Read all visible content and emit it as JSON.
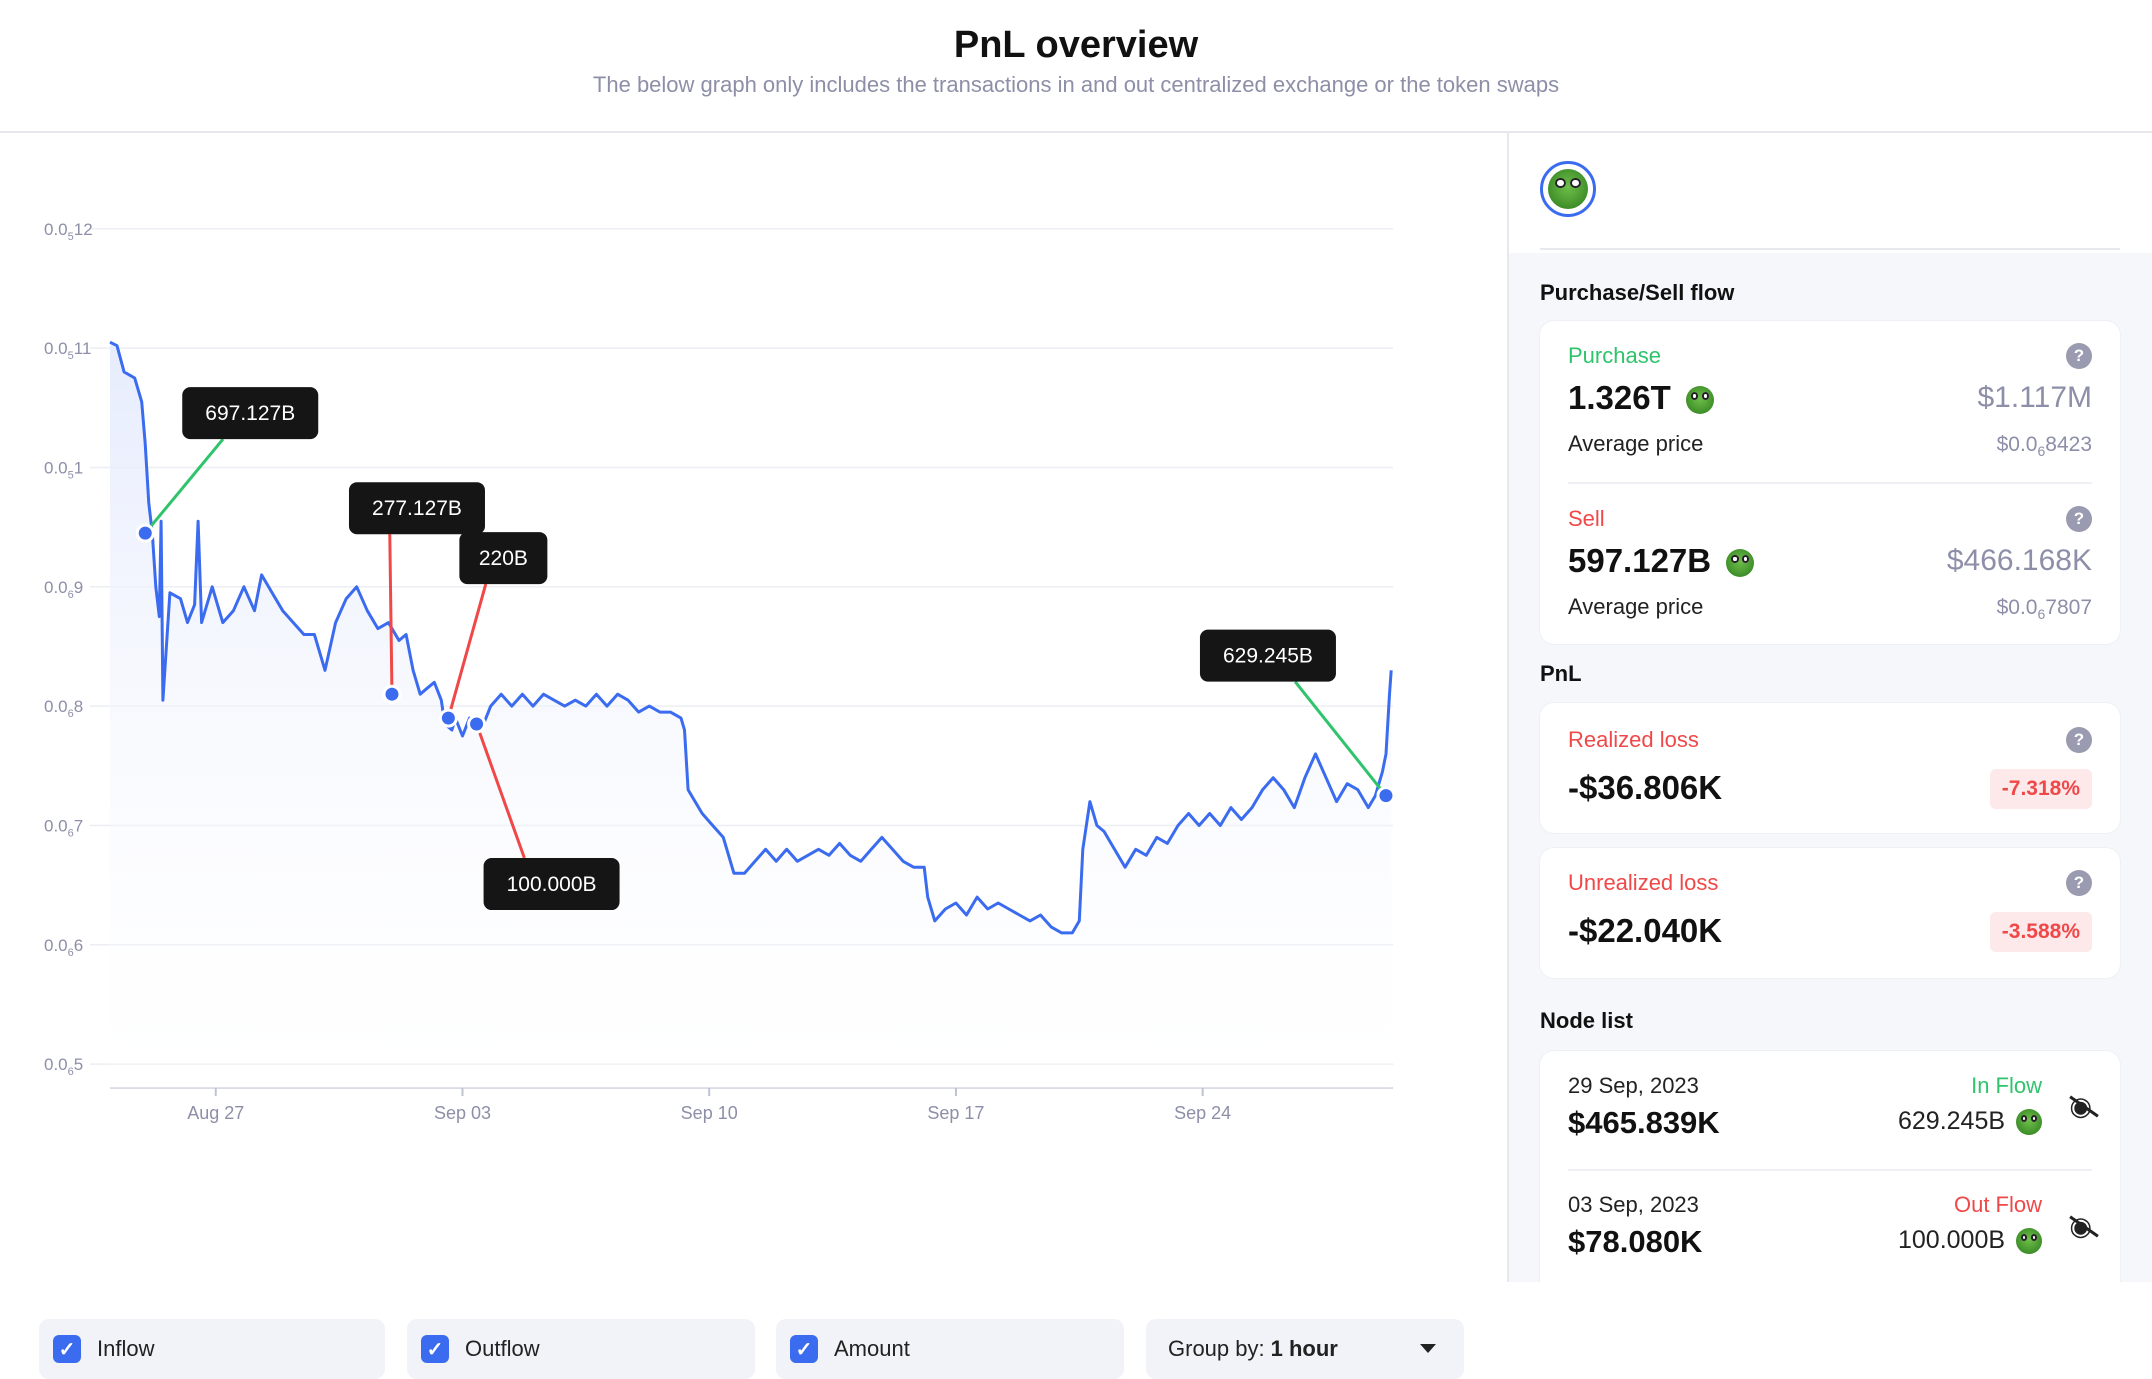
{
  "header": {
    "title": "PnL overview",
    "subtitle": "The below graph only includes the transactions in and out centralized exchange or the token swaps"
  },
  "chart_data": {
    "type": "line",
    "y_ticks": [
      {
        "value": 0.12,
        "base": "0.0",
        "sub": "5",
        "rest": "12"
      },
      {
        "value": 0.11,
        "base": "0.0",
        "sub": "5",
        "rest": "11"
      },
      {
        "value": 0.1,
        "base": "0.0",
        "sub": "5",
        "rest": "1"
      },
      {
        "value": 0.09,
        "base": "0.0",
        "sub": "6",
        "rest": "9"
      },
      {
        "value": 0.08,
        "base": "0.0",
        "sub": "6",
        "rest": "8"
      },
      {
        "value": 0.07,
        "base": "0.0",
        "sub": "6",
        "rest": "7"
      },
      {
        "value": 0.06,
        "base": "0.0",
        "sub": "6",
        "rest": "6"
      },
      {
        "value": 0.05,
        "base": "0.0",
        "sub": "6",
        "rest": "5"
      }
    ],
    "x_ticks": [
      {
        "day": 4.8,
        "label": "Aug 27"
      },
      {
        "day": 11.8,
        "label": "Sep 03"
      },
      {
        "day": 18.8,
        "label": "Sep 10"
      },
      {
        "day": 25.8,
        "label": "Sep 17"
      },
      {
        "day": 32.8,
        "label": "Sep 24"
      }
    ],
    "x_range": [
      1.8,
      38.2
    ],
    "y_range": [
      0.048,
      0.123
    ],
    "series": [
      {
        "points": [
          [
            1.8,
            0.1105
          ],
          [
            2.0,
            0.1102
          ],
          [
            2.2,
            0.108
          ],
          [
            2.5,
            0.1075
          ],
          [
            2.7,
            0.1055
          ],
          [
            2.8,
            0.102
          ],
          [
            2.9,
            0.097
          ],
          [
            3.0,
            0.0945
          ],
          [
            3.1,
            0.09
          ],
          [
            3.2,
            0.0875
          ],
          [
            3.25,
            0.0955
          ],
          [
            3.3,
            0.0805
          ],
          [
            3.5,
            0.0895
          ],
          [
            3.8,
            0.089
          ],
          [
            4.0,
            0.087
          ],
          [
            4.2,
            0.0885
          ],
          [
            4.3,
            0.0955
          ],
          [
            4.4,
            0.087
          ],
          [
            4.7,
            0.09
          ],
          [
            5.0,
            0.087
          ],
          [
            5.3,
            0.088
          ],
          [
            5.6,
            0.09
          ],
          [
            5.9,
            0.088
          ],
          [
            6.1,
            0.091
          ],
          [
            6.4,
            0.0895
          ],
          [
            6.7,
            0.088
          ],
          [
            7.0,
            0.087
          ],
          [
            7.3,
            0.086
          ],
          [
            7.6,
            0.086
          ],
          [
            7.9,
            0.083
          ],
          [
            8.2,
            0.087
          ],
          [
            8.5,
            0.089
          ],
          [
            8.8,
            0.09
          ],
          [
            9.1,
            0.088
          ],
          [
            9.4,
            0.0865
          ],
          [
            9.7,
            0.087
          ],
          [
            10.0,
            0.0855
          ],
          [
            10.2,
            0.086
          ],
          [
            10.4,
            0.083
          ],
          [
            10.6,
            0.081
          ],
          [
            10.8,
            0.0815
          ],
          [
            11.0,
            0.082
          ],
          [
            11.2,
            0.0805
          ],
          [
            11.3,
            0.0785
          ],
          [
            11.5,
            0.078
          ],
          [
            11.6,
            0.079
          ],
          [
            11.8,
            0.0775
          ],
          [
            12.0,
            0.079
          ],
          [
            12.2,
            0.078
          ],
          [
            12.4,
            0.0785
          ],
          [
            12.6,
            0.08
          ],
          [
            12.9,
            0.081
          ],
          [
            13.2,
            0.08
          ],
          [
            13.5,
            0.081
          ],
          [
            13.8,
            0.08
          ],
          [
            14.1,
            0.081
          ],
          [
            14.4,
            0.0805
          ],
          [
            14.7,
            0.08
          ],
          [
            15.0,
            0.0805
          ],
          [
            15.3,
            0.08
          ],
          [
            15.6,
            0.081
          ],
          [
            15.9,
            0.08
          ],
          [
            16.2,
            0.081
          ],
          [
            16.5,
            0.0805
          ],
          [
            16.8,
            0.0795
          ],
          [
            17.1,
            0.08
          ],
          [
            17.4,
            0.0795
          ],
          [
            17.7,
            0.0795
          ],
          [
            18.0,
            0.079
          ],
          [
            18.1,
            0.078
          ],
          [
            18.2,
            0.073
          ],
          [
            18.4,
            0.072
          ],
          [
            18.6,
            0.071
          ],
          [
            18.9,
            0.07
          ],
          [
            19.2,
            0.069
          ],
          [
            19.5,
            0.066
          ],
          [
            19.8,
            0.066
          ],
          [
            20.1,
            0.067
          ],
          [
            20.4,
            0.068
          ],
          [
            20.7,
            0.067
          ],
          [
            21.0,
            0.068
          ],
          [
            21.3,
            0.067
          ],
          [
            21.6,
            0.0675
          ],
          [
            21.9,
            0.068
          ],
          [
            22.2,
            0.0675
          ],
          [
            22.5,
            0.0685
          ],
          [
            22.8,
            0.0675
          ],
          [
            23.1,
            0.067
          ],
          [
            23.4,
            0.068
          ],
          [
            23.7,
            0.069
          ],
          [
            24.0,
            0.068
          ],
          [
            24.3,
            0.067
          ],
          [
            24.6,
            0.0665
          ],
          [
            24.9,
            0.0665
          ],
          [
            25.0,
            0.064
          ],
          [
            25.2,
            0.062
          ],
          [
            25.5,
            0.063
          ],
          [
            25.8,
            0.0635
          ],
          [
            26.1,
            0.0625
          ],
          [
            26.4,
            0.064
          ],
          [
            26.7,
            0.063
          ],
          [
            27.0,
            0.0635
          ],
          [
            27.3,
            0.063
          ],
          [
            27.6,
            0.0625
          ],
          [
            27.9,
            0.062
          ],
          [
            28.2,
            0.0625
          ],
          [
            28.5,
            0.0615
          ],
          [
            28.8,
            0.061
          ],
          [
            29.1,
            0.061
          ],
          [
            29.3,
            0.062
          ],
          [
            29.4,
            0.068
          ],
          [
            29.6,
            0.072
          ],
          [
            29.8,
            0.07
          ],
          [
            30.0,
            0.0695
          ],
          [
            30.3,
            0.068
          ],
          [
            30.6,
            0.0665
          ],
          [
            30.9,
            0.068
          ],
          [
            31.2,
            0.0675
          ],
          [
            31.5,
            0.069
          ],
          [
            31.8,
            0.0685
          ],
          [
            32.1,
            0.07
          ],
          [
            32.4,
            0.071
          ],
          [
            32.7,
            0.07
          ],
          [
            33.0,
            0.071
          ],
          [
            33.3,
            0.07
          ],
          [
            33.6,
            0.0715
          ],
          [
            33.9,
            0.0705
          ],
          [
            34.2,
            0.0715
          ],
          [
            34.5,
            0.073
          ],
          [
            34.8,
            0.074
          ],
          [
            35.1,
            0.073
          ],
          [
            35.4,
            0.0715
          ],
          [
            35.7,
            0.074
          ],
          [
            36.0,
            0.076
          ],
          [
            36.3,
            0.074
          ],
          [
            36.6,
            0.072
          ],
          [
            36.9,
            0.0735
          ],
          [
            37.2,
            0.073
          ],
          [
            37.5,
            0.0715
          ],
          [
            37.7,
            0.0725
          ],
          [
            37.9,
            0.0745
          ],
          [
            38.0,
            0.076
          ],
          [
            38.1,
            0.081
          ],
          [
            38.15,
            0.083
          ]
        ]
      }
    ],
    "annotations": [
      {
        "label": "697.127B",
        "day": 2.8,
        "value": 0.0945,
        "flow": "in"
      },
      {
        "label": "277.127B",
        "day": 9.8,
        "value": 0.081,
        "flow": "out"
      },
      {
        "label": "220B",
        "day": 11.4,
        "value": 0.079,
        "flow": "out"
      },
      {
        "label": "100.000B",
        "day": 12.2,
        "value": 0.0785,
        "flow": "out"
      },
      {
        "label": "629.245B",
        "day": 38.0,
        "value": 0.0725,
        "flow": "in"
      }
    ],
    "colors": {
      "line": "#3b6cf0",
      "inflow": "#2fc46b",
      "outflow": "#f04848"
    }
  },
  "controls": {
    "inflow": "Inflow",
    "outflow": "Outflow",
    "amount": "Amount",
    "group_by_label": "Group by:",
    "group_by_value": "1 hour"
  },
  "panel": {
    "purchase_sell_title": "Purchase/Sell flow",
    "purchase": {
      "label": "Purchase",
      "amount": "1.326T",
      "usd": "$1.117M",
      "avg_label": "Average price",
      "avg_base": "$0.0",
      "avg_sub": "6",
      "avg_rest": "8423"
    },
    "sell": {
      "label": "Sell",
      "amount": "597.127B",
      "usd": "$466.168K",
      "avg_label": "Average price",
      "avg_base": "$0.0",
      "avg_sub": "6",
      "avg_rest": "7807"
    },
    "pnl_title": "PnL",
    "realized": {
      "label": "Realized loss",
      "value": "-$36.806K",
      "pct": "-7.318%"
    },
    "unrealized": {
      "label": "Unrealized loss",
      "value": "-$22.040K",
      "pct": "-3.588%"
    },
    "node_list_title": "Node list",
    "nodes": [
      {
        "date": "29 Sep, 2023",
        "value": "$465.839K",
        "flow": "In Flow",
        "amount": "629.245B"
      },
      {
        "date": "03 Sep, 2023",
        "value": "$78.080K",
        "flow": "Out Flow",
        "amount": "100.000B"
      }
    ]
  }
}
